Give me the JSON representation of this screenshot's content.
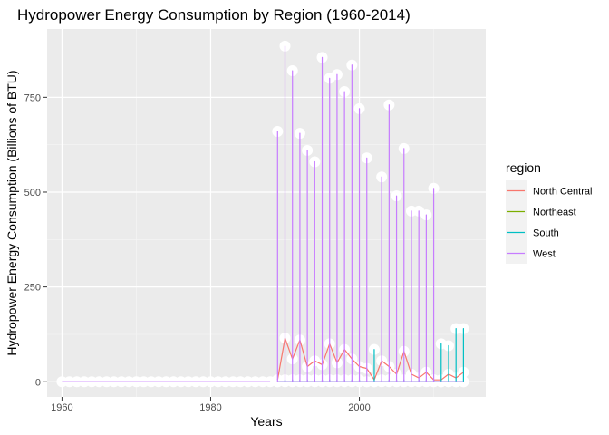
{
  "chart_data": {
    "type": "line",
    "title": "Hydropower Energy Consumption by Region (1960-2014)",
    "xlabel": "Years",
    "ylabel": "Hydropower Energy Consumption (Billions of BTU)",
    "xlim": [
      1958,
      2017
    ],
    "ylim": [
      -40,
      930
    ],
    "xticks": [
      1960,
      1980,
      2000
    ],
    "xtick_labels": [
      "1960",
      "1980",
      "2000"
    ],
    "yticks": [
      0,
      250,
      500,
      750
    ],
    "ytick_labels": [
      "0",
      "250",
      "500",
      "750"
    ],
    "grid": true,
    "legend": {
      "title": "region",
      "position": "right"
    },
    "series": [
      {
        "name": "North Central",
        "color": "#F8766D",
        "x": [
          1989,
          1990,
          1991,
          1992,
          1993,
          1994,
          1995,
          1996,
          1997,
          1998,
          1999,
          2000,
          2001,
          2002,
          2003,
          2004,
          2005,
          2006,
          2007,
          2008,
          2009,
          2010,
          2011,
          2012,
          2013,
          2014
        ],
        "y": [
          5,
          115,
          60,
          110,
          40,
          55,
          45,
          100,
          50,
          85,
          60,
          40,
          35,
          5,
          55,
          40,
          20,
          80,
          20,
          10,
          25,
          5,
          5,
          20,
          10,
          25
        ]
      },
      {
        "name": "Northeast",
        "color": "#7CAE00",
        "x": [
          1989,
          1990,
          1991,
          1992,
          1993,
          1994,
          1995,
          1996,
          1997,
          1998,
          1999,
          2000,
          2001,
          2002,
          2003,
          2004,
          2005,
          2006,
          2007,
          2008,
          2009,
          2010,
          2011,
          2012,
          2013,
          2014
        ],
        "y": [
          0,
          0,
          0,
          0,
          0,
          0,
          0,
          0,
          0,
          0,
          0,
          0,
          0,
          0,
          0,
          0,
          0,
          0,
          0,
          0,
          0,
          0,
          0,
          0,
          0,
          0
        ]
      },
      {
        "name": "South",
        "color": "#00BFC4",
        "x": [
          1989,
          1990,
          1991,
          1992,
          1993,
          1994,
          1995,
          1996,
          1997,
          1998,
          1999,
          2000,
          2001,
          2002,
          2003,
          2004,
          2005,
          2006,
          2007,
          2008,
          2009,
          2010,
          2011,
          2012,
          2013,
          2014
        ],
        "y": [
          0,
          5,
          5,
          5,
          5,
          5,
          5,
          5,
          5,
          5,
          5,
          5,
          0,
          85,
          5,
          5,
          5,
          5,
          5,
          5,
          5,
          5,
          100,
          95,
          140,
          140
        ]
      },
      {
        "name": "West",
        "color": "#C77CFF",
        "x": [
          1989,
          1990,
          1991,
          1992,
          1993,
          1994,
          1995,
          1996,
          1997,
          1998,
          1999,
          2000,
          2001,
          2002,
          2003,
          2004,
          2005,
          2006,
          2007,
          2008,
          2009,
          2010,
          2011,
          2012,
          2013,
          2014
        ],
        "y": [
          660,
          885,
          820,
          655,
          610,
          580,
          855,
          800,
          810,
          765,
          835,
          720,
          590,
          0,
          540,
          730,
          490,
          615,
          450,
          450,
          440,
          510,
          0,
          0,
          0,
          0
        ]
      }
    ],
    "zero_span": [
      1960,
      1988
    ],
    "point_style": {
      "color": "#ffffff",
      "size": 6
    }
  }
}
